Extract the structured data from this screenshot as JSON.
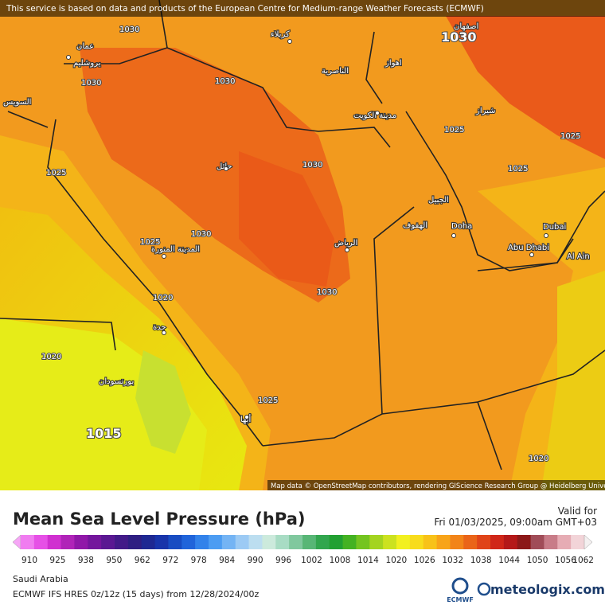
{
  "banner": "This service is based on data and products of the European Centre for Medium-range Weather Forecasts (ECMWF)",
  "map": {
    "cities": [
      "عمان",
      "يروشليم",
      "كربلاء",
      "اصفهان",
      "الناصرية",
      "اهواز",
      "مدينة الكويت",
      "شيراز",
      "حائل",
      "الرياض",
      "المدينة المنورة",
      "الجبيل",
      "الهفوف",
      "Doha",
      "Dubai",
      "Abu Dhabi",
      "Al Ain",
      "جدة",
      "بورتسودان",
      "أبها",
      "السويس"
    ],
    "isobars": [
      "1030",
      "1030",
      "1030",
      "1030",
      "1030",
      "1030",
      "1030",
      "1025",
      "1025",
      "1025",
      "1025",
      "1025",
      "1025",
      "1020",
      "1020",
      "1020",
      "1015"
    ],
    "attribution": "Map data © OpenStreetMap contributors, rendering GIScience Research Group @ Heidelberg University"
  },
  "legend": {
    "title": "Mean Sea Level Pressure (hPa)",
    "valid_label": "Valid for",
    "valid_time": "Fri 01/03/2025, 09:00am GMT+03",
    "ticks": [
      910,
      925,
      938,
      950,
      962,
      972,
      978,
      984,
      990,
      996,
      1002,
      1008,
      1014,
      1020,
      1026,
      1032,
      1038,
      1044,
      1050,
      1056,
      1062
    ],
    "colors": [
      "#f6a6f6",
      "#f07cf0",
      "#e650e6",
      "#d030d0",
      "#b024b8",
      "#9018a8",
      "#74169c",
      "#5a1892",
      "#421a88",
      "#2e1e82",
      "#1e2892",
      "#1834aa",
      "#184cc2",
      "#2064da",
      "#3282ea",
      "#4c9cf2",
      "#74b4f4",
      "#9ccaf4",
      "#bcdef0",
      "#cceadc",
      "#a8dcc4",
      "#80c89e",
      "#58b676",
      "#32a64e",
      "#22a032",
      "#44b222",
      "#74c420",
      "#a4d420",
      "#cce220",
      "#f2f020",
      "#f8dc1c",
      "#f8c218",
      "#f8a418",
      "#f28418",
      "#ea6418",
      "#e04418",
      "#d02618",
      "#b41818",
      "#8c1818",
      "#a04c58",
      "#c87c88",
      "#e6acb4",
      "#f2d4d8",
      "#f4f0f0"
    ]
  },
  "footer": {
    "region": "Saudi Arabia",
    "model": "ECMWF IFS HRES 0z/12z (15 days) from  12/28/2024/00z",
    "ecmwf": "ECMWF",
    "brand": "meteologix.com"
  }
}
